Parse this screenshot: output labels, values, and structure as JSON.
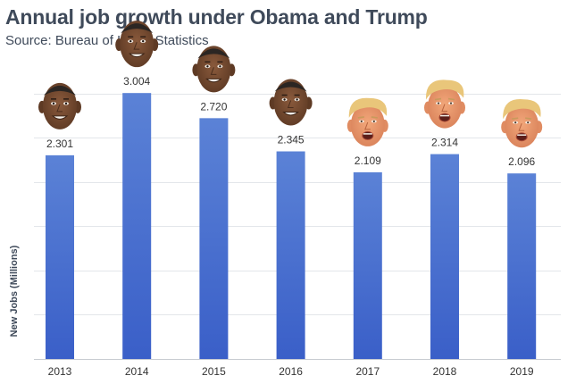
{
  "chart_data": {
    "type": "bar",
    "title": "Annual job growth under Obama and Trump",
    "subtitle": "Source: Bureau of Labor Statistics",
    "xlabel": "",
    "ylabel": "New Jobs (Millions)",
    "categories": [
      "2013",
      "2014",
      "2015",
      "2016",
      "2017",
      "2018",
      "2019"
    ],
    "values": [
      2.301,
      3.004,
      2.72,
      2.345,
      2.109,
      2.314,
      2.096
    ],
    "value_labels": [
      "2.301",
      "3.004",
      "2.720",
      "2.345",
      "2.109",
      "2.314",
      "2.096"
    ],
    "president_icons": [
      "obama-face-icon",
      "obama-face-icon",
      "obama-face-icon",
      "obama-face-icon",
      "trump-face-icon",
      "trump-face-icon",
      "trump-face-icon"
    ],
    "ylim": [
      0,
      3.5
    ],
    "grid": true,
    "bar_color_top": "#5b82d6",
    "bar_color_bottom": "#3a5fc8"
  }
}
